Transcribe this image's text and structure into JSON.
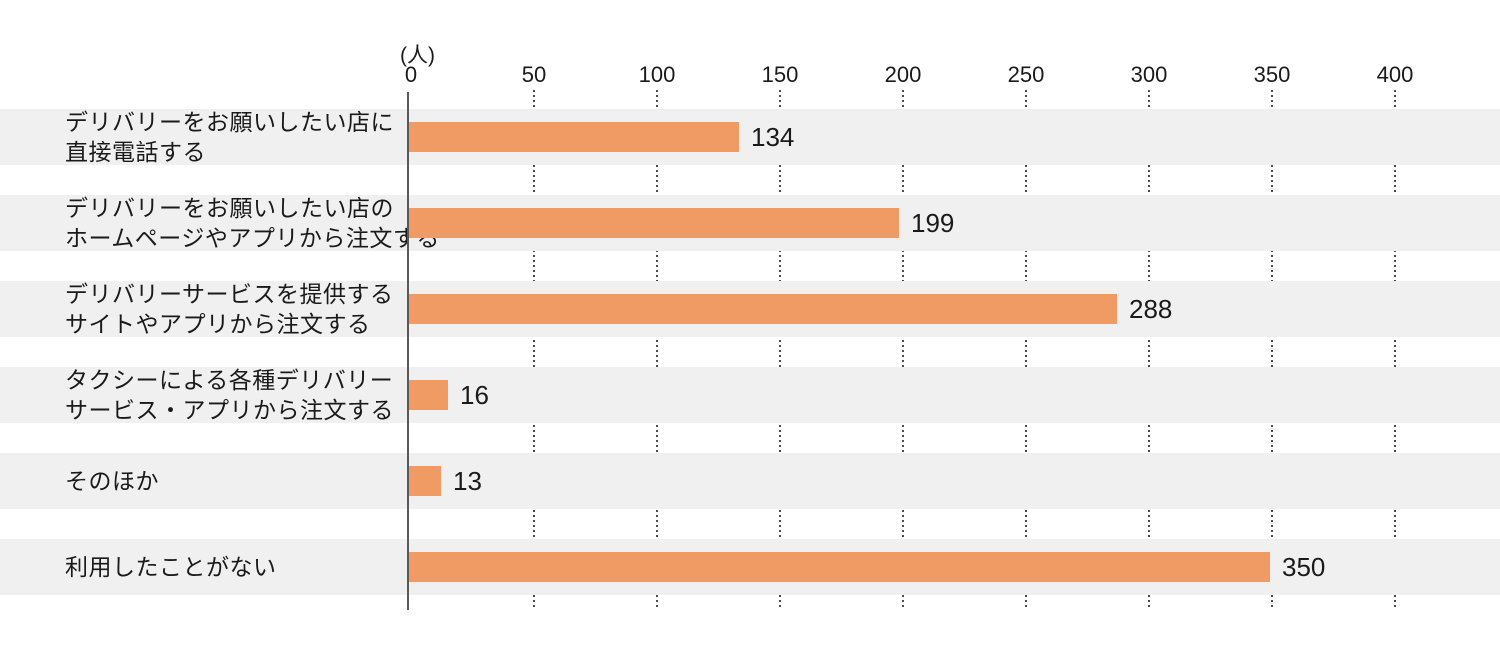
{
  "axis": {
    "unit_label": "(人)",
    "ticks": [
      "0",
      "50",
      "100",
      "150",
      "200",
      "250",
      "300",
      "350",
      "400"
    ]
  },
  "rows": [
    {
      "label": "デリバリーをお願いしたい店に\n直接電話する",
      "value": "134"
    },
    {
      "label": "デリバリーをお願いしたい店の\nホームページやアプリから注文する",
      "value": "199"
    },
    {
      "label": "デリバリーサービスを提供する\nサイトやアプリから注文する",
      "value": "288"
    },
    {
      "label": "タクシーによる各種デリバリー\nサービス・アプリから注文する",
      "value": "16"
    },
    {
      "label": "そのほか",
      "value": "13"
    },
    {
      "label": "利用したことがない",
      "value": "350"
    }
  ],
  "chart_data": {
    "type": "bar",
    "orientation": "horizontal",
    "title": "",
    "xlabel": "(人)",
    "ylabel": "",
    "xlim": [
      0,
      400
    ],
    "x_ticks": [
      0,
      50,
      100,
      150,
      200,
      250,
      300,
      350,
      400
    ],
    "categories": [
      "デリバリーをお願いしたい店に直接電話する",
      "デリバリーをお願いしたい店のホームページやアプリから注文する",
      "デリバリーサービスを提供するサイトやアプリから注文する",
      "タクシーによる各種デリバリーサービス・アプリから注文する",
      "そのほか",
      "利用したことがない"
    ],
    "values": [
      134,
      199,
      288,
      16,
      13,
      350
    ],
    "grid": "dotted-vertical",
    "legend": "none",
    "colors": {
      "bar": "#f09a64",
      "row_band": "#f0f0f0",
      "axis_line": "#595959",
      "grid_dots": "#4b4b4b",
      "text": "#1a1a1a",
      "background": "#ffffff"
    }
  }
}
